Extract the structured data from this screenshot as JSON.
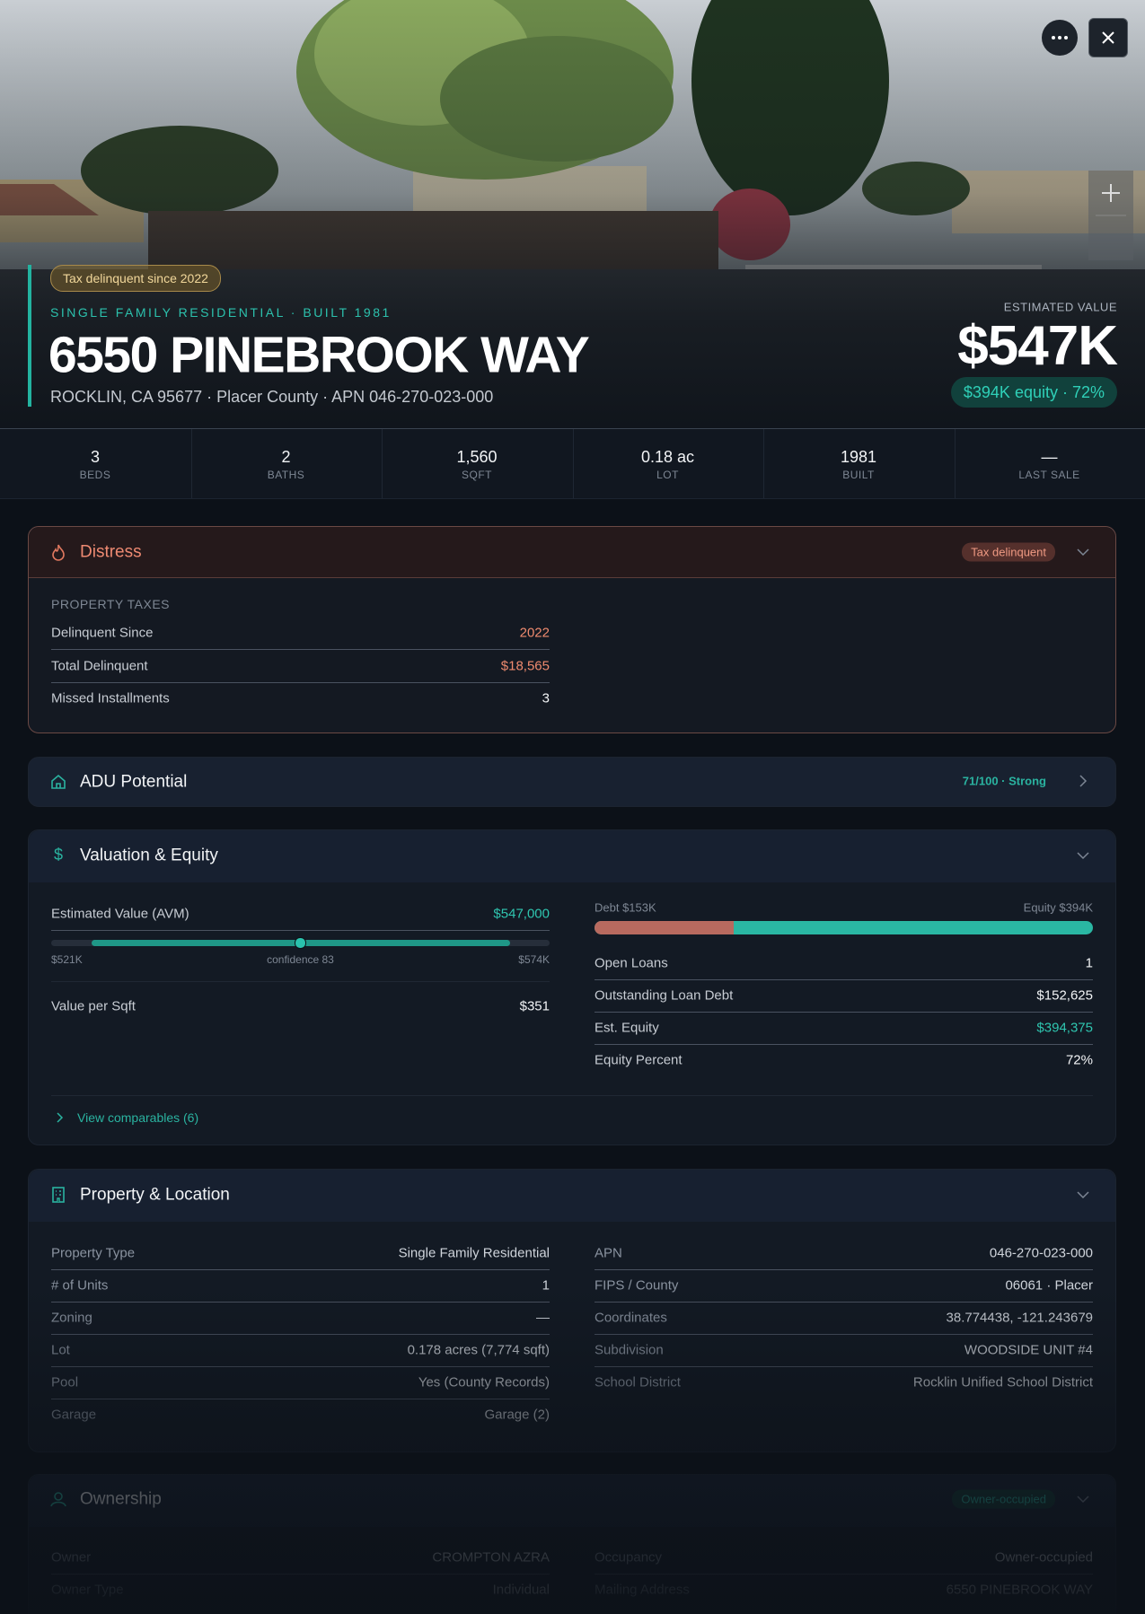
{
  "header": {
    "badge": "Tax delinquent since 2022",
    "subtitle": "SINGLE FAMILY RESIDENTIAL · BUILT 1981",
    "title": "6550 PINEBROOK WAY",
    "address": "ROCKLIN, CA 95677 · Placer County · APN 046-270-023-000",
    "value_label": "ESTIMATED VALUE",
    "value": "$547K",
    "equity": "$394K equity · 72%"
  },
  "stats": [
    {
      "value": "3",
      "label": "BEDS"
    },
    {
      "value": "2",
      "label": "BATHS"
    },
    {
      "value": "1,560",
      "label": "SQFT"
    },
    {
      "value": "0.18 ac",
      "label": "LOT"
    },
    {
      "value": "1981",
      "label": "BUILT"
    },
    {
      "value": "—",
      "label": "LAST SALE"
    }
  ],
  "distress": {
    "title": "Distress",
    "badge": "Tax delinquent",
    "section": "PROPERTY TAXES",
    "rows": [
      [
        "Delinquent Since",
        "2022"
      ],
      [
        "Total Delinquent",
        "$18,565"
      ],
      [
        "Missed Installments",
        "3"
      ]
    ]
  },
  "adu": {
    "title": "ADU Potential",
    "score": "71/100 · Strong"
  },
  "valuation": {
    "title": "Valuation & Equity",
    "avm_label": "Estimated Value (AVM)",
    "avm_value": "$547,000",
    "range_low": "$521K",
    "confidence": "confidence 83",
    "range_high": "$574K",
    "sqft_label": "Value per Sqft",
    "sqft_value": "$351",
    "debt_label": "Debt $153K",
    "equity_label": "Equity $394K",
    "rows": [
      [
        "Open Loans",
        "1"
      ],
      [
        "Outstanding Loan Debt",
        "$152,625"
      ],
      [
        "Est. Equity",
        "$394,375"
      ],
      [
        "Equity Percent",
        "72%"
      ]
    ],
    "comparables": "View comparables (6)"
  },
  "property": {
    "title": "Property & Location",
    "left": [
      [
        "Property Type",
        "Single Family Residential"
      ],
      [
        "# of Units",
        "1"
      ],
      [
        "Zoning",
        "—"
      ],
      [
        "Lot",
        "0.178 acres (7,774 sqft)"
      ],
      [
        "Pool",
        "Yes (County Records)"
      ],
      [
        "Garage",
        "Garage (2)"
      ]
    ],
    "right": [
      [
        "APN",
        "046-270-023-000"
      ],
      [
        "FIPS / County",
        "06061 · Placer"
      ],
      [
        "Coordinates",
        "38.774438, -121.243679"
      ],
      [
        "Subdivision",
        "WOODSIDE UNIT #4"
      ],
      [
        "School District",
        "Rocklin Unified School District"
      ]
    ]
  },
  "ownership": {
    "title": "Ownership",
    "badge": "Owner-occupied",
    "left": [
      [
        "Owner",
        "CROMPTON AZRA"
      ],
      [
        "Owner Type",
        "Individual"
      ]
    ],
    "right": [
      [
        "Occupancy",
        "Owner-occupied"
      ],
      [
        "Mailing Address",
        "6550 PINEBROOK WAY"
      ]
    ]
  }
}
